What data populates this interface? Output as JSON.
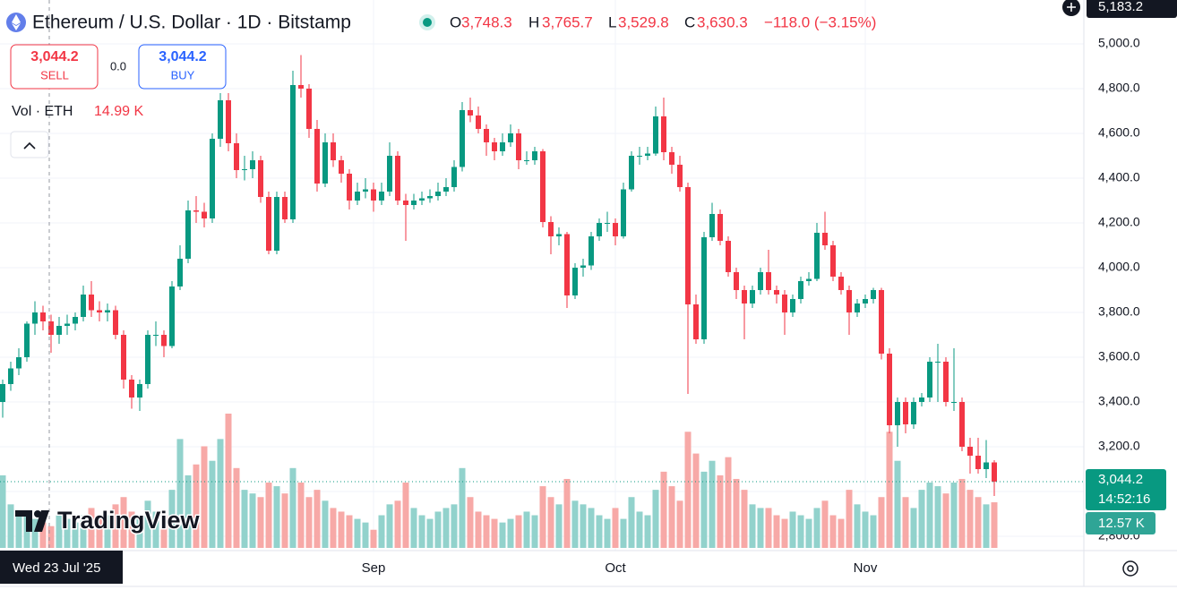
{
  "header": {
    "title": "Ethereum / U.S. Dollar · 1D · Bitstamp",
    "o_label": "O",
    "open": "3,748.3",
    "h_label": "H",
    "high": "3,765.7",
    "l_label": "L",
    "low": "3,529.8",
    "c_label": "C",
    "close": "3,630.3",
    "change": "−118.0 (−3.15%)"
  },
  "trade": {
    "sell_price": "3,044.2",
    "sell": "SELL",
    "spread": "0.0",
    "buy_price": "3,044.2",
    "buy": "BUY"
  },
  "volume_legend": {
    "label": "Vol · ETH",
    "value": "14.99 K"
  },
  "price_label": {
    "price": "3,044.2",
    "countdown": "14:52:16",
    "volume": "12.57 K",
    "top": "5,183.2"
  },
  "crosshair_label": "Wed 23 Jul '25",
  "logo": "TradingView",
  "chart_data": {
    "type": "candlestick",
    "up_color": "#089981",
    "down_color": "#f23645",
    "volume_up_color": "#92d2cc",
    "volume_down_color": "#f7a9a7",
    "ylim": [
      2736,
      5196
    ],
    "yticks": [
      {
        "value": 2800,
        "label": "2,800.0"
      },
      {
        "value": 3000,
        "label": "3,000.0"
      },
      {
        "value": 3200,
        "label": "3,200.0"
      },
      {
        "value": 3400,
        "label": "3,400.0"
      },
      {
        "value": 3600,
        "label": "3,600.0"
      },
      {
        "value": 3800,
        "label": "3,800.0"
      },
      {
        "value": 4000,
        "label": "4,000.0"
      },
      {
        "value": 4200,
        "label": "4,200.0"
      },
      {
        "value": 4400,
        "label": "4,400.0"
      },
      {
        "value": 4600,
        "label": "4,600.0"
      },
      {
        "value": 4800,
        "label": "4,800.0"
      },
      {
        "value": 5000,
        "label": "5,000.0"
      }
    ],
    "grid": true,
    "categories": [
      null,
      null,
      null,
      null,
      null,
      null,
      null,
      null,
      null,
      null,
      null,
      null,
      null,
      null,
      null,
      null,
      null,
      null,
      null,
      null,
      null,
      null,
      null,
      null,
      null,
      null,
      null,
      null,
      null,
      null,
      null,
      null,
      null,
      null,
      null,
      null,
      null,
      null,
      null,
      null,
      null,
      null,
      null,
      null,
      null,
      null,
      "Sep",
      null,
      null,
      null,
      null,
      null,
      null,
      null,
      null,
      null,
      null,
      null,
      null,
      null,
      null,
      null,
      null,
      null,
      null,
      null,
      null,
      null,
      null,
      null,
      null,
      null,
      null,
      null,
      null,
      null,
      "Oct",
      null,
      null,
      null,
      null,
      null,
      null,
      null,
      null,
      null,
      null,
      null,
      null,
      null,
      null,
      null,
      null,
      null,
      null,
      null,
      null,
      null,
      null,
      null,
      null,
      null,
      null,
      null,
      null,
      null,
      null,
      "Nov",
      null,
      null,
      null,
      null,
      null,
      null,
      null,
      null,
      null,
      null,
      null,
      null,
      null,
      null,
      null,
      null
    ],
    "ohlc": [
      [
        3400,
        3500,
        3330,
        3480
      ],
      [
        3480,
        3580,
        3450,
        3550
      ],
      [
        3550,
        3640,
        3520,
        3600
      ],
      [
        3600,
        3760,
        3580,
        3750
      ],
      [
        3750,
        3850,
        3700,
        3800
      ],
      [
        3800,
        3830,
        3720,
        3760
      ],
      [
        3760,
        3790,
        3620,
        3700
      ],
      [
        3700,
        3780,
        3660,
        3740
      ],
      [
        3740,
        3790,
        3700,
        3750
      ],
      [
        3750,
        3800,
        3720,
        3780
      ],
      [
        3780,
        3920,
        3760,
        3880
      ],
      [
        3880,
        3940,
        3780,
        3810
      ],
      [
        3810,
        3850,
        3760,
        3800
      ],
      [
        3800,
        3840,
        3760,
        3810
      ],
      [
        3810,
        3830,
        3680,
        3700
      ],
      [
        3700,
        3720,
        3460,
        3500
      ],
      [
        3500,
        3520,
        3370,
        3420
      ],
      [
        3420,
        3500,
        3360,
        3480
      ],
      [
        3480,
        3720,
        3460,
        3700
      ],
      [
        3700,
        3760,
        3650,
        3700
      ],
      [
        3700,
        3720,
        3600,
        3650
      ],
      [
        3650,
        3940,
        3640,
        3916
      ],
      [
        3916,
        4100,
        3900,
        4040
      ],
      [
        4040,
        4300,
        4020,
        4256
      ],
      [
        4256,
        4320,
        4200,
        4250
      ],
      [
        4250,
        4290,
        4180,
        4220
      ],
      [
        4220,
        4600,
        4200,
        4576
      ],
      [
        4576,
        4780,
        4540,
        4748
      ],
      [
        4748,
        4780,
        4520,
        4556
      ],
      [
        4556,
        4600,
        4400,
        4436
      ],
      [
        4436,
        4500,
        4390,
        4440
      ],
      [
        4440,
        4520,
        4400,
        4480
      ],
      [
        4480,
        4500,
        4290,
        4316
      ],
      [
        4316,
        4340,
        4060,
        4076
      ],
      [
        4076,
        4340,
        4060,
        4316
      ],
      [
        4316,
        4340,
        4200,
        4216
      ],
      [
        4216,
        4880,
        4200,
        4816
      ],
      [
        4816,
        4950,
        4760,
        4800
      ],
      [
        4800,
        4820,
        4580,
        4620
      ],
      [
        4620,
        4660,
        4340,
        4376
      ],
      [
        4376,
        4600,
        4360,
        4560
      ],
      [
        4560,
        4600,
        4450,
        4480
      ],
      [
        4480,
        4500,
        4380,
        4420
      ],
      [
        4420,
        4440,
        4260,
        4300
      ],
      [
        4300,
        4380,
        4280,
        4340
      ],
      [
        4340,
        4400,
        4310,
        4350
      ],
      [
        4350,
        4380,
        4250,
        4300
      ],
      [
        4300,
        4380,
        4280,
        4340
      ],
      [
        4340,
        4560,
        4320,
        4500
      ],
      [
        4500,
        4520,
        4280,
        4300
      ],
      [
        4300,
        4330,
        4120,
        4280
      ],
      [
        4280,
        4330,
        4260,
        4300
      ],
      [
        4300,
        4340,
        4280,
        4310
      ],
      [
        4310,
        4350,
        4290,
        4320
      ],
      [
        4320,
        4380,
        4300,
        4340
      ],
      [
        4340,
        4400,
        4320,
        4360
      ],
      [
        4360,
        4480,
        4340,
        4450
      ],
      [
        4450,
        4740,
        4430,
        4704
      ],
      [
        4704,
        4760,
        4650,
        4680
      ],
      [
        4680,
        4720,
        4600,
        4620
      ],
      [
        4620,
        4640,
        4500,
        4560
      ],
      [
        4560,
        4580,
        4480,
        4520
      ],
      [
        4520,
        4600,
        4500,
        4560
      ],
      [
        4560,
        4640,
        4540,
        4600
      ],
      [
        4600,
        4620,
        4440,
        4480
      ],
      [
        4480,
        4520,
        4460,
        4480
      ],
      [
        4480,
        4540,
        4460,
        4520
      ],
      [
        4520,
        4530,
        4180,
        4204
      ],
      [
        4204,
        4230,
        4060,
        4140
      ],
      [
        4140,
        4180,
        4100,
        4150
      ],
      [
        4150,
        4160,
        3820,
        3876
      ],
      [
        3876,
        4020,
        3860,
        4000
      ],
      [
        4000,
        4040,
        3960,
        4010
      ],
      [
        4010,
        4160,
        3990,
        4140
      ],
      [
        4140,
        4220,
        4120,
        4200
      ],
      [
        4200,
        4250,
        4160,
        4200
      ],
      [
        4200,
        4220,
        4100,
        4140
      ],
      [
        4140,
        4380,
        4130,
        4350
      ],
      [
        4350,
        4520,
        4340,
        4500
      ],
      [
        4500,
        4540,
        4460,
        4500
      ],
      [
        4500,
        4540,
        4480,
        4510
      ],
      [
        4510,
        4720,
        4500,
        4676
      ],
      [
        4676,
        4760,
        4480,
        4516
      ],
      [
        4516,
        4540,
        4420,
        4460
      ],
      [
        4460,
        4500,
        4340,
        4360
      ],
      [
        4360,
        4380,
        3436,
        3836
      ],
      [
        3836,
        3880,
        3660,
        3680
      ],
      [
        3680,
        4160,
        3660,
        4136
      ],
      [
        4136,
        4290,
        4120,
        4240
      ],
      [
        4240,
        4260,
        4100,
        4120
      ],
      [
        4120,
        4140,
        3960,
        3980
      ],
      [
        3980,
        4000,
        3860,
        3900
      ],
      [
        3900,
        3920,
        3680,
        3840
      ],
      [
        3840,
        3920,
        3820,
        3900
      ],
      [
        3900,
        4000,
        3880,
        3980
      ],
      [
        3980,
        4080,
        3880,
        3900
      ],
      [
        3900,
        3920,
        3840,
        3880
      ],
      [
        3880,
        3900,
        3700,
        3800
      ],
      [
        3800,
        3880,
        3780,
        3860
      ],
      [
        3860,
        3960,
        3840,
        3940
      ],
      [
        3940,
        3980,
        3920,
        3950
      ],
      [
        3950,
        4200,
        3940,
        4156
      ],
      [
        4156,
        4250,
        4080,
        4100
      ],
      [
        4100,
        4120,
        3940,
        3960
      ],
      [
        3960,
        3980,
        3880,
        3900
      ],
      [
        3900,
        3920,
        3700,
        3800
      ],
      [
        3800,
        3860,
        3780,
        3840
      ],
      [
        3840,
        3880,
        3820,
        3860
      ],
      [
        3860,
        3910,
        3840,
        3900
      ],
      [
        3900,
        3910,
        3590,
        3616
      ],
      [
        3616,
        3640,
        3260,
        3296
      ],
      [
        3296,
        3420,
        3200,
        3400
      ],
      [
        3400,
        3420,
        3260,
        3300
      ],
      [
        3300,
        3420,
        3280,
        3400
      ],
      [
        3400,
        3440,
        3380,
        3420
      ],
      [
        3420,
        3600,
        3400,
        3580
      ],
      [
        3580,
        3660,
        3400,
        3580
      ],
      [
        3580,
        3600,
        3380,
        3400
      ],
      [
        3400,
        3640,
        3360,
        3400
      ],
      [
        3400,
        3420,
        3180,
        3200
      ],
      [
        3200,
        3240,
        3080,
        3160
      ],
      [
        3160,
        3240,
        3080,
        3100
      ],
      [
        3100,
        3230,
        3060,
        3130
      ],
      [
        3130,
        3140,
        2980,
        3044.2
      ]
    ],
    "volume": [
      20,
      12,
      9,
      10,
      8,
      7,
      6,
      9,
      8,
      7,
      9,
      11,
      8,
      9,
      12,
      14,
      10,
      9,
      13,
      10,
      9,
      16,
      30,
      20,
      23,
      28,
      24,
      30,
      37,
      22,
      16,
      15,
      14,
      18,
      17,
      15,
      22,
      18,
      14,
      16,
      13,
      11,
      10,
      9,
      8,
      7,
      5,
      9,
      12,
      13,
      18,
      11,
      9,
      8,
      10,
      11,
      12,
      22,
      14,
      10,
      9,
      8,
      7,
      8,
      9,
      10,
      9,
      17,
      14,
      12,
      19,
      13,
      12,
      11,
      9,
      8,
      11,
      8,
      14,
      10,
      9,
      16,
      21,
      17,
      13,
      32,
      26,
      21,
      24,
      20,
      25,
      19,
      16,
      12,
      11,
      11,
      9,
      8,
      10,
      9,
      8,
      11,
      13,
      9,
      8,
      16,
      12,
      10,
      9,
      14,
      32,
      24,
      14,
      11,
      16,
      18,
      17,
      15,
      18,
      19,
      16,
      14,
      12,
      12.57
    ]
  }
}
